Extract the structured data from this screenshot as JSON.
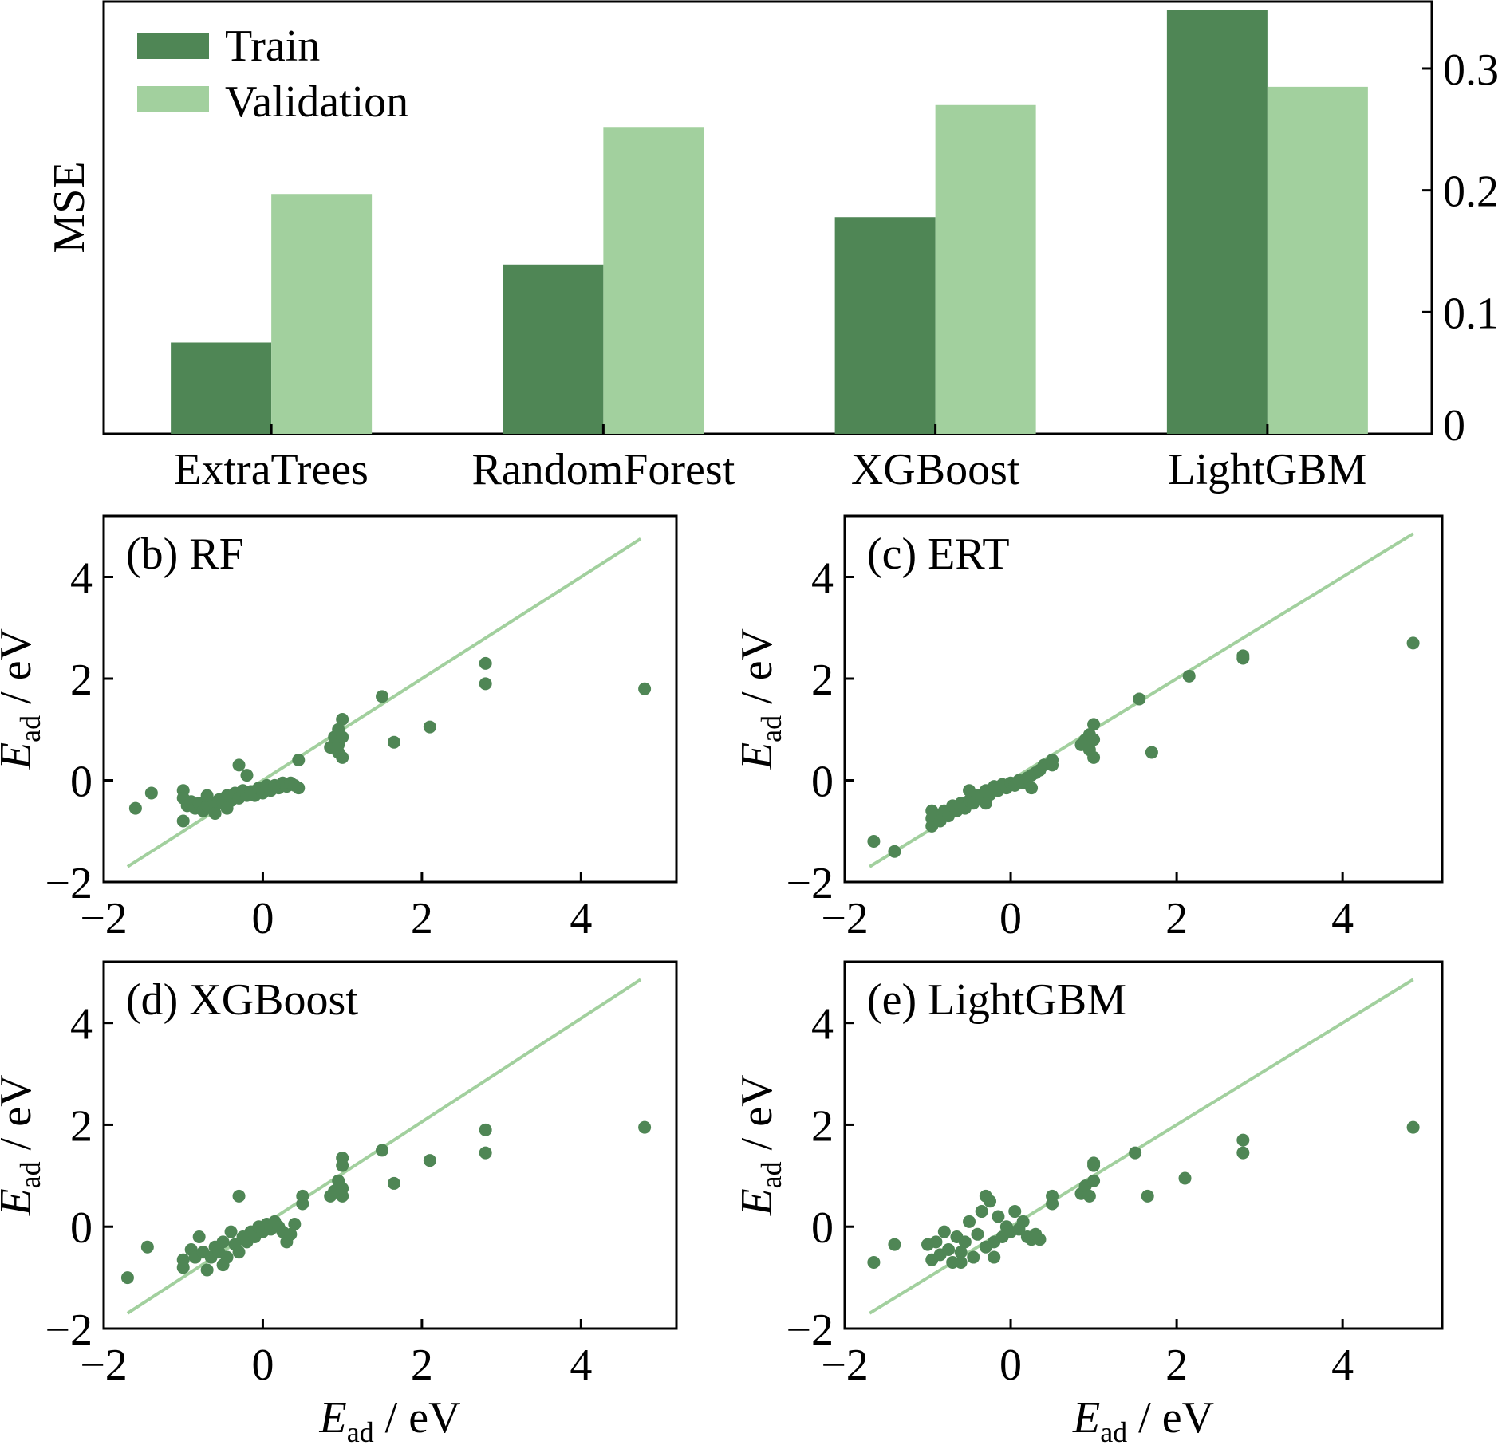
{
  "colors": {
    "train": "#4f8655",
    "validation": "#a2d09e",
    "diagonal": "#a2d09e",
    "point": "#4f8655",
    "axis": "#000000"
  },
  "chart_data": [
    {
      "id": "mse",
      "type": "bar",
      "categories": [
        "ExtraTrees",
        "RandomForest",
        "XGBoost",
        "LightGBM"
      ],
      "series": [
        {
          "name": "Train",
          "values": [
            0.075,
            0.139,
            0.178,
            0.348
          ]
        },
        {
          "name": "Validation",
          "values": [
            0.197,
            0.252,
            0.27,
            0.285
          ]
        }
      ],
      "ylabel": "MSE",
      "ylim": [
        0,
        0.355
      ],
      "yticks": [
        0,
        0.1,
        0.2,
        0.3
      ],
      "ytick_labels": [
        "0",
        "0.1",
        "0.2",
        "0.3"
      ],
      "yaxis_side": "right",
      "legend": "top-left"
    },
    {
      "id": "rf",
      "type": "scatter",
      "label_text": "(b) RF",
      "xlim": [
        -2,
        5.2
      ],
      "ylim": [
        -2,
        5.2
      ],
      "xticks": [
        -2,
        0,
        2,
        4
      ],
      "xtick_labels": [
        "−2",
        "0",
        "2",
        "4"
      ],
      "yticks": [
        -2,
        0,
        2,
        4
      ],
      "ytick_labels": [
        "−2",
        "0",
        "2",
        "4"
      ],
      "ylabel": {
        "symbol": "E",
        "sub": "ad",
        "rest": " / eV"
      },
      "diagonal": [
        [
          -1.7,
          -1.7
        ],
        [
          4.75,
          4.75
        ]
      ],
      "points": [
        [
          -1.6,
          -0.55
        ],
        [
          -1.4,
          -0.25
        ],
        [
          -1.0,
          -0.2
        ],
        [
          -1.0,
          -0.35
        ],
        [
          -0.95,
          -0.5
        ],
        [
          -0.9,
          -0.42
        ],
        [
          -0.85,
          -0.55
        ],
        [
          -0.8,
          -0.45
        ],
        [
          -0.75,
          -0.6
        ],
        [
          -0.7,
          -0.5
        ],
        [
          -0.65,
          -0.45
        ],
        [
          -0.6,
          -0.5
        ],
        [
          -0.55,
          -0.38
        ],
        [
          -0.5,
          -0.45
        ],
        [
          -0.45,
          -0.3
        ],
        [
          -0.4,
          -0.4
        ],
        [
          -0.35,
          -0.25
        ],
        [
          -0.3,
          -0.35
        ],
        [
          -0.25,
          -0.2
        ],
        [
          -0.2,
          -0.3
        ],
        [
          -0.15,
          -0.22
        ],
        [
          -0.1,
          -0.3
        ],
        [
          -0.05,
          -0.15
        ],
        [
          0.0,
          -0.25
        ],
        [
          0.05,
          -0.1
        ],
        [
          0.1,
          -0.2
        ],
        [
          0.15,
          -0.1
        ],
        [
          0.2,
          -0.15
        ],
        [
          0.25,
          -0.05
        ],
        [
          0.3,
          -0.12
        ],
        [
          0.35,
          -0.05
        ],
        [
          0.4,
          -0.1
        ],
        [
          0.45,
          -0.15
        ],
        [
          -0.3,
          0.3
        ],
        [
          -0.7,
          -0.3
        ],
        [
          -1.0,
          -0.8
        ],
        [
          -0.6,
          -0.65
        ],
        [
          -0.45,
          -0.55
        ],
        [
          -0.2,
          0.1
        ],
        [
          0.45,
          0.4
        ],
        [
          0.85,
          0.65
        ],
        [
          0.9,
          0.85
        ],
        [
          0.95,
          0.55
        ],
        [
          0.95,
          1.0
        ],
        [
          0.95,
          0.7
        ],
        [
          1.0,
          0.45
        ],
        [
          1.0,
          1.2
        ],
        [
          1.0,
          0.85
        ],
        [
          1.5,
          1.65
        ],
        [
          1.65,
          0.75
        ],
        [
          2.1,
          1.05
        ],
        [
          2.8,
          2.3
        ],
        [
          2.8,
          1.9
        ],
        [
          4.8,
          1.8
        ]
      ]
    },
    {
      "id": "ert",
      "type": "scatter",
      "label_text": "(c) ERT",
      "xlim": [
        -2,
        5.2
      ],
      "ylim": [
        -2,
        5.2
      ],
      "xticks": [
        -2,
        0,
        2,
        4
      ],
      "xtick_labels": [
        "−2",
        "0",
        "2",
        "4"
      ],
      "yticks": [
        -2,
        0,
        2,
        4
      ],
      "ytick_labels": [
        "−2",
        "0",
        "2",
        "4"
      ],
      "ylabel": {
        "symbol": "E",
        "sub": "ad",
        "rest": " / eV"
      },
      "diagonal": [
        [
          -1.7,
          -1.7
        ],
        [
          4.85,
          4.85
        ]
      ],
      "points": [
        [
          -1.65,
          -1.2
        ],
        [
          -1.4,
          -1.4
        ],
        [
          -0.95,
          -0.9
        ],
        [
          -0.95,
          -0.75
        ],
        [
          -0.95,
          -0.6
        ],
        [
          -0.9,
          -0.7
        ],
        [
          -0.85,
          -0.8
        ],
        [
          -0.8,
          -0.6
        ],
        [
          -0.75,
          -0.7
        ],
        [
          -0.7,
          -0.5
        ],
        [
          -0.65,
          -0.6
        ],
        [
          -0.6,
          -0.45
        ],
        [
          -0.55,
          -0.55
        ],
        [
          -0.5,
          -0.4
        ],
        [
          -0.45,
          -0.45
        ],
        [
          -0.4,
          -0.3
        ],
        [
          -0.35,
          -0.35
        ],
        [
          -0.3,
          -0.2
        ],
        [
          -0.25,
          -0.28
        ],
        [
          -0.2,
          -0.12
        ],
        [
          -0.15,
          -0.2
        ],
        [
          -0.1,
          -0.08
        ],
        [
          -0.05,
          -0.15
        ],
        [
          0.0,
          -0.05
        ],
        [
          0.05,
          -0.1
        ],
        [
          0.1,
          0.0
        ],
        [
          0.15,
          -0.05
        ],
        [
          0.2,
          0.05
        ],
        [
          0.25,
          0.1
        ],
        [
          0.3,
          0.15
        ],
        [
          0.35,
          0.2
        ],
        [
          0.4,
          0.3
        ],
        [
          0.5,
          0.3
        ],
        [
          0.5,
          0.4
        ],
        [
          -0.5,
          -0.2
        ],
        [
          -0.3,
          -0.45
        ],
        [
          0.25,
          -0.15
        ],
        [
          0.85,
          0.7
        ],
        [
          0.9,
          0.8
        ],
        [
          0.95,
          0.6
        ],
        [
          0.95,
          0.9
        ],
        [
          1.0,
          1.1
        ],
        [
          1.0,
          0.8
        ],
        [
          1.0,
          0.45
        ],
        [
          1.55,
          1.6
        ],
        [
          1.7,
          0.55
        ],
        [
          2.15,
          2.05
        ],
        [
          2.8,
          2.4
        ],
        [
          2.8,
          2.45
        ],
        [
          4.85,
          2.7
        ]
      ]
    },
    {
      "id": "xgb",
      "type": "scatter",
      "label_text": "(d) XGBoost",
      "xlim": [
        -2,
        5.2
      ],
      "ylim": [
        -2,
        5.2
      ],
      "xticks": [
        -2,
        0,
        2,
        4
      ],
      "xtick_labels": [
        "−2",
        "0",
        "2",
        "4"
      ],
      "yticks": [
        -2,
        0,
        2,
        4
      ],
      "ytick_labels": [
        "−2",
        "0",
        "2",
        "4"
      ],
      "xlabel": {
        "symbol": "E",
        "sub": "ad",
        "rest": " / eV"
      },
      "ylabel": {
        "symbol": "E",
        "sub": "ad",
        "rest": " / eV"
      },
      "diagonal": [
        [
          -1.7,
          -1.7
        ],
        [
          4.75,
          4.85
        ]
      ],
      "points": [
        [
          -1.7,
          -1.0
        ],
        [
          -1.45,
          -0.4
        ],
        [
          -1.0,
          -0.8
        ],
        [
          -1.0,
          -0.65
        ],
        [
          -0.9,
          -0.45
        ],
        [
          -0.85,
          -0.6
        ],
        [
          -0.8,
          -0.2
        ],
        [
          -0.75,
          -0.5
        ],
        [
          -0.7,
          -0.85
        ],
        [
          -0.65,
          -0.6
        ],
        [
          -0.6,
          -0.4
        ],
        [
          -0.55,
          -0.5
        ],
        [
          -0.5,
          -0.3
        ],
        [
          -0.45,
          -0.6
        ],
        [
          -0.4,
          -0.1
        ],
        [
          -0.35,
          -0.35
        ],
        [
          -0.3,
          -0.5
        ],
        [
          -0.25,
          -0.2
        ],
        [
          -0.2,
          -0.3
        ],
        [
          -0.15,
          -0.1
        ],
        [
          -0.1,
          -0.2
        ],
        [
          -0.05,
          0.0
        ],
        [
          0.0,
          -0.1
        ],
        [
          0.05,
          0.05
        ],
        [
          0.1,
          -0.05
        ],
        [
          0.15,
          0.1
        ],
        [
          0.2,
          0.0
        ],
        [
          0.25,
          -0.1
        ],
        [
          0.3,
          -0.3
        ],
        [
          0.35,
          -0.15
        ],
        [
          0.4,
          0.05
        ],
        [
          -0.3,
          0.6
        ],
        [
          -0.5,
          -0.75
        ],
        [
          0.5,
          0.45
        ],
        [
          0.5,
          0.6
        ],
        [
          0.85,
          0.6
        ],
        [
          0.9,
          0.7
        ],
        [
          0.95,
          0.9
        ],
        [
          1.0,
          1.2
        ],
        [
          1.0,
          1.35
        ],
        [
          1.0,
          0.6
        ],
        [
          1.0,
          0.75
        ],
        [
          1.5,
          1.5
        ],
        [
          1.65,
          0.85
        ],
        [
          2.1,
          1.3
        ],
        [
          2.8,
          1.9
        ],
        [
          2.8,
          1.45
        ],
        [
          4.8,
          1.95
        ]
      ]
    },
    {
      "id": "lgbm",
      "type": "scatter",
      "label_text": "(e) LightGBM",
      "xlim": [
        -2,
        5.2
      ],
      "ylim": [
        -2,
        5.2
      ],
      "xticks": [
        -2,
        0,
        2,
        4
      ],
      "xtick_labels": [
        "−2",
        "0",
        "2",
        "4"
      ],
      "yticks": [
        -2,
        0,
        2,
        4
      ],
      "ytick_labels": [
        "−2",
        "0",
        "2",
        "4"
      ],
      "xlabel": {
        "symbol": "E",
        "sub": "ad",
        "rest": " / eV"
      },
      "ylabel": {
        "symbol": "E",
        "sub": "ad",
        "rest": " / eV"
      },
      "diagonal": [
        [
          -1.7,
          -1.7
        ],
        [
          4.85,
          4.85
        ]
      ],
      "points": [
        [
          -1.65,
          -0.7
        ],
        [
          -1.4,
          -0.35
        ],
        [
          -1.0,
          -0.35
        ],
        [
          -0.95,
          -0.65
        ],
        [
          -0.9,
          -0.3
        ],
        [
          -0.85,
          -0.55
        ],
        [
          -0.8,
          -0.1
        ],
        [
          -0.75,
          -0.45
        ],
        [
          -0.7,
          -0.7
        ],
        [
          -0.65,
          -0.2
        ],
        [
          -0.6,
          -0.5
        ],
        [
          -0.55,
          -0.3
        ],
        [
          -0.5,
          0.1
        ],
        [
          -0.45,
          -0.6
        ],
        [
          -0.4,
          -0.15
        ],
        [
          -0.35,
          0.3
        ],
        [
          -0.3,
          -0.4
        ],
        [
          -0.25,
          0.5
        ],
        [
          -0.2,
          -0.3
        ],
        [
          -0.15,
          0.2
        ],
        [
          -0.1,
          -0.2
        ],
        [
          -0.05,
          0.0
        ],
        [
          0.0,
          -0.1
        ],
        [
          0.05,
          0.3
        ],
        [
          0.1,
          -0.05
        ],
        [
          0.15,
          0.1
        ],
        [
          0.2,
          -0.2
        ],
        [
          0.25,
          -0.25
        ],
        [
          0.3,
          -0.15
        ],
        [
          0.35,
          -0.25
        ],
        [
          -0.3,
          0.6
        ],
        [
          -0.6,
          -0.7
        ],
        [
          -0.2,
          -0.6
        ],
        [
          0.5,
          0.45
        ],
        [
          0.5,
          0.6
        ],
        [
          0.85,
          0.65
        ],
        [
          0.9,
          0.8
        ],
        [
          0.95,
          0.6
        ],
        [
          1.0,
          1.2
        ],
        [
          1.0,
          1.25
        ],
        [
          1.0,
          0.9
        ],
        [
          1.5,
          1.45
        ],
        [
          1.65,
          0.6
        ],
        [
          2.1,
          0.95
        ],
        [
          2.8,
          1.7
        ],
        [
          2.8,
          1.45
        ],
        [
          4.85,
          1.95
        ]
      ]
    }
  ]
}
